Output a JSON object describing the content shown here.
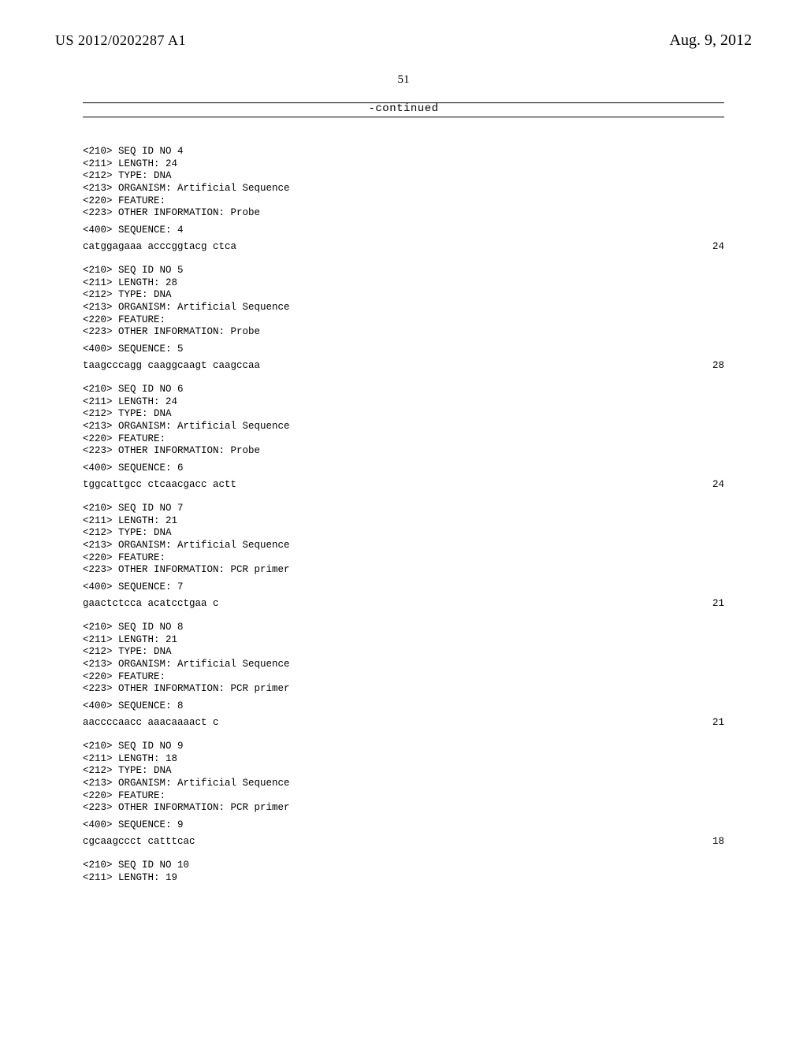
{
  "header": {
    "application_id": "US 2012/0202287 A1",
    "pub_date": "Aug. 9, 2012"
  },
  "page_number": "51",
  "continued_label": "-continued",
  "seq_blocks": [
    {
      "meta": [
        "<210> SEQ ID NO 4",
        "<211> LENGTH: 24",
        "<212> TYPE: DNA",
        "<213> ORGANISM: Artificial Sequence",
        "<220> FEATURE:",
        "<223> OTHER INFORMATION: Probe"
      ],
      "sequence_label": "<400> SEQUENCE: 4",
      "sequence": "catggagaaa acccggtacg ctca",
      "length_at_right": "24"
    },
    {
      "meta": [
        "<210> SEQ ID NO 5",
        "<211> LENGTH: 28",
        "<212> TYPE: DNA",
        "<213> ORGANISM: Artificial Sequence",
        "<220> FEATURE:",
        "<223> OTHER INFORMATION: Probe"
      ],
      "sequence_label": "<400> SEQUENCE: 5",
      "sequence": "taagcccagg caaggcaagt caagccaa",
      "length_at_right": "28"
    },
    {
      "meta": [
        "<210> SEQ ID NO 6",
        "<211> LENGTH: 24",
        "<212> TYPE: DNA",
        "<213> ORGANISM: Artificial Sequence",
        "<220> FEATURE:",
        "<223> OTHER INFORMATION: Probe"
      ],
      "sequence_label": "<400> SEQUENCE: 6",
      "sequence": "tggcattgcc ctcaacgacc actt",
      "length_at_right": "24"
    },
    {
      "meta": [
        "<210> SEQ ID NO 7",
        "<211> LENGTH: 21",
        "<212> TYPE: DNA",
        "<213> ORGANISM: Artificial Sequence",
        "<220> FEATURE:",
        "<223> OTHER INFORMATION: PCR primer"
      ],
      "sequence_label": "<400> SEQUENCE: 7",
      "sequence": "gaactctcca acatcctgaa c",
      "length_at_right": "21"
    },
    {
      "meta": [
        "<210> SEQ ID NO 8",
        "<211> LENGTH: 21",
        "<212> TYPE: DNA",
        "<213> ORGANISM: Artificial Sequence",
        "<220> FEATURE:",
        "<223> OTHER INFORMATION: PCR primer"
      ],
      "sequence_label": "<400> SEQUENCE: 8",
      "sequence": "aaccccaacc aaacaaaact c",
      "length_at_right": "21"
    },
    {
      "meta": [
        "<210> SEQ ID NO 9",
        "<211> LENGTH: 18",
        "<212> TYPE: DNA",
        "<213> ORGANISM: Artificial Sequence",
        "<220> FEATURE:",
        "<223> OTHER INFORMATION: PCR primer"
      ],
      "sequence_label": "<400> SEQUENCE: 9",
      "sequence": "cgcaagccct catttcac",
      "length_at_right": "18"
    }
  ],
  "trailing_meta": [
    "<210> SEQ ID NO 10",
    "<211> LENGTH: 19"
  ]
}
